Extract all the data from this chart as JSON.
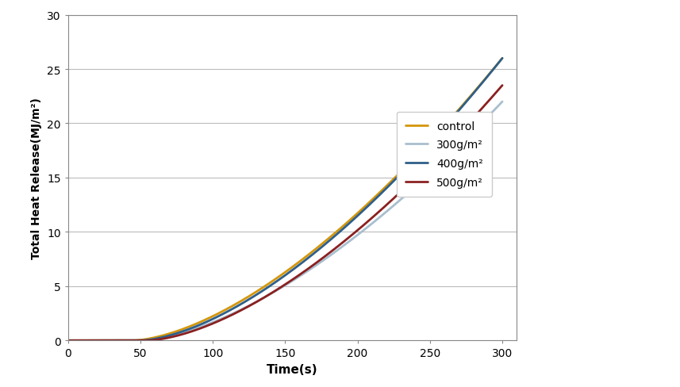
{
  "xlabel": "Time(s)",
  "ylabel": "Total Heat Release(MJ/m²)",
  "xlim": [
    0,
    310
  ],
  "ylim": [
    0,
    30
  ],
  "xticks": [
    0,
    50,
    100,
    150,
    200,
    250,
    300
  ],
  "yticks": [
    0,
    5,
    10,
    15,
    20,
    25,
    30
  ],
  "series": [
    {
      "label": "control",
      "color": "#D4960A",
      "linewidth": 2.0,
      "start_time": 45,
      "end_value": 26.0,
      "exponent": 1.6
    },
    {
      "label": "300g/m²",
      "color": "#A8BFCE",
      "linewidth": 2.0,
      "start_time": 50,
      "end_value": 22.0,
      "exponent": 1.6
    },
    {
      "label": "400g/m²",
      "color": "#2E5F8A",
      "linewidth": 2.0,
      "start_time": 50,
      "end_value": 26.0,
      "exponent": 1.6
    },
    {
      "label": "500g/m²",
      "color": "#8B2020",
      "linewidth": 2.0,
      "start_time": 55,
      "end_value": 23.5,
      "exponent": 1.6
    }
  ],
  "background_color": "#ffffff",
  "grid_color": "#bbbbbb",
  "figure_width": 8.57,
  "figure_height": 4.89
}
